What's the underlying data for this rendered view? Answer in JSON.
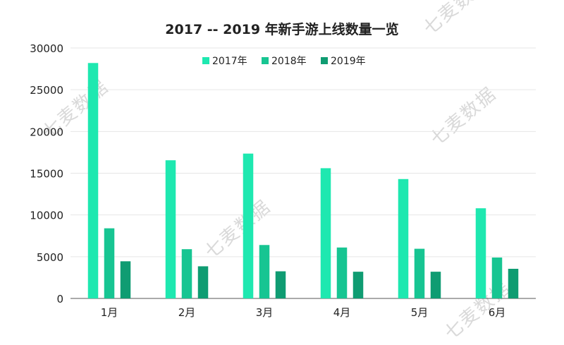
{
  "watermark": "七麦数据",
  "chart_data": {
    "type": "bar",
    "title": "2017 -- 2019 年新手游上线数量一览",
    "xlabel": "",
    "ylabel": "",
    "categories": [
      "1月",
      "2月",
      "3月",
      "4月",
      "5月",
      "6月"
    ],
    "series": [
      {
        "name": "2017年",
        "values": [
          28200,
          16550,
          17350,
          15600,
          14300,
          10800
        ],
        "color": "#1ee8b0"
      },
      {
        "name": "2018年",
        "values": [
          8400,
          5900,
          6400,
          6100,
          5950,
          4900
        ],
        "color": "#17c592"
      },
      {
        "name": "2019年",
        "values": [
          4450,
          3850,
          3250,
          3200,
          3200,
          3550
        ],
        "color": "#0f9c72"
      }
    ],
    "ylim": [
      0,
      30000
    ],
    "yticks": [
      "0",
      "5000",
      "10000",
      "15000",
      "20000",
      "25000",
      "30000"
    ],
    "ytick_values": [
      0,
      5000,
      10000,
      15000,
      20000,
      25000,
      30000
    ],
    "grid": true,
    "legend_position": "top"
  }
}
